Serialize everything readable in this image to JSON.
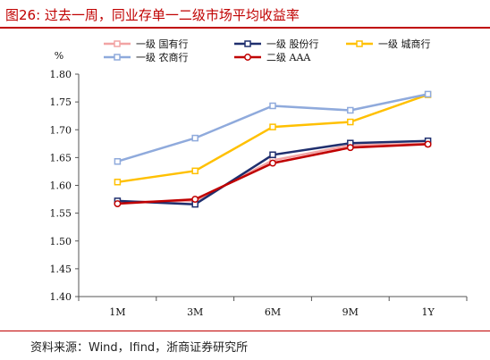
{
  "figure": {
    "title": "图26:   过去一周，同业存单一二级市场平均收益率",
    "source": "资料来源：Wind，Ifind，浙商证券研究所"
  },
  "chart_data": {
    "type": "line",
    "ylabel": "%",
    "ylim": [
      1.4,
      1.8
    ],
    "y_ticks": [
      "1.40",
      "1.45",
      "1.50",
      "1.55",
      "1.60",
      "1.65",
      "1.70",
      "1.75",
      "1.80"
    ],
    "categories": [
      "1M",
      "3M",
      "6M",
      "9M",
      "1Y"
    ],
    "grid": false,
    "legend_position": "top",
    "series": [
      {
        "name": "一级 国有行",
        "color": "#f2a4a4",
        "values": [
          1.57,
          1.572,
          1.645,
          1.672,
          1.675
        ]
      },
      {
        "name": "一级 股份行",
        "color": "#1f2f6e",
        "values": [
          1.572,
          1.566,
          1.655,
          1.676,
          1.68
        ]
      },
      {
        "name": "一级 城商行",
        "color": "#ffc000",
        "values": [
          1.606,
          1.626,
          1.705,
          1.714,
          1.763
        ]
      },
      {
        "name": "一级 农商行",
        "color": "#8faadc",
        "values": [
          1.643,
          1.685,
          1.743,
          1.735,
          1.764
        ]
      },
      {
        "name": "二级 AAA",
        "color": "#c00000",
        "values": [
          1.567,
          1.575,
          1.64,
          1.668,
          1.674
        ]
      }
    ]
  }
}
